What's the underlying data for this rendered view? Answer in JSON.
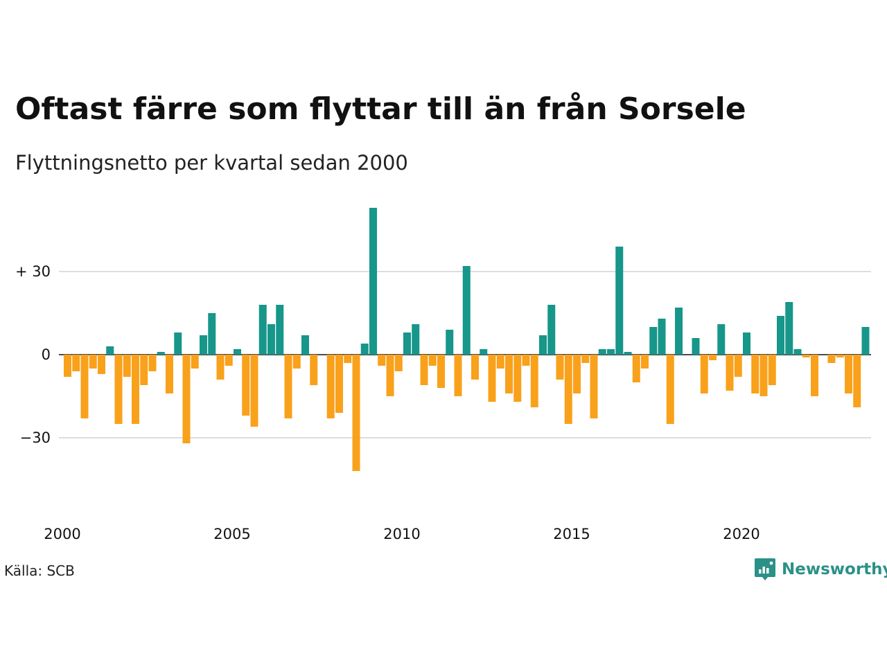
{
  "title": "Oftast färre som flyttar till än från Sorsele",
  "subtitle": "Flyttningsnetto per kvartal sedan 2000",
  "source": "Källa: SCB",
  "brand": "Newsworthy",
  "colors": {
    "positive": "#17968a",
    "negative": "#f9a11b",
    "grid": "#dddddd",
    "brand": "#2a9187"
  },
  "chart_data": {
    "type": "bar",
    "x_start": "2000 Q1",
    "x_tick_labels": [
      "2000",
      "2005",
      "2010",
      "2015",
      "2020"
    ],
    "y_tick_labels": [
      "+ 30",
      "0",
      "−30"
    ],
    "y_ticks": [
      30,
      0,
      -30
    ],
    "ylim": [
      -50,
      55
    ],
    "grid": true,
    "values": [
      -8,
      -6,
      -23,
      -5,
      -7,
      3,
      -25,
      -8,
      -25,
      -11,
      -6,
      1,
      -14,
      8,
      -32,
      -5,
      7,
      15,
      -9,
      -4,
      2,
      -22,
      -26,
      18,
      11,
      18,
      -23,
      -5,
      7,
      -11,
      0,
      -23,
      -21,
      -3,
      -42,
      4,
      53,
      -4,
      -15,
      -6,
      8,
      11,
      -11,
      -4,
      -12,
      9,
      -15,
      32,
      -9,
      2,
      -17,
      -5,
      -14,
      -17,
      -4,
      -19,
      7,
      18,
      -9,
      -25,
      -14,
      -3,
      -23,
      2,
      2,
      39,
      1,
      -10,
      -5,
      10,
      13,
      -25,
      17,
      0,
      6,
      -14,
      -2,
      11,
      -13,
      -8,
      8,
      -14,
      -15,
      -11,
      14,
      19,
      2,
      -1,
      -15,
      0,
      -3,
      -1,
      -14,
      -19,
      10
    ]
  }
}
